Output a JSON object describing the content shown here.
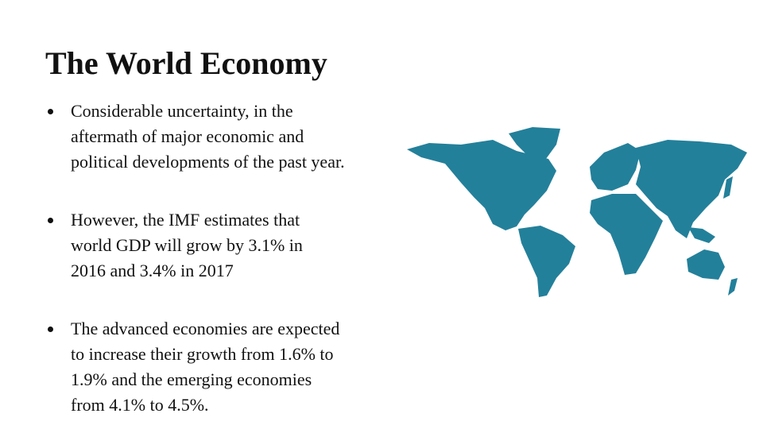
{
  "title": "The World Economy",
  "bullets": [
    [
      "Considerable uncertainty, in the",
      "aftermath of major economic and",
      "political developments of the past year."
    ],
    [
      "However, the IMF estimates that",
      "world GDP will grow by 3.1% in",
      "2016 and 3.4% in 2017"
    ],
    [
      "The advanced economies are expected",
      "to increase their growth from 1.6% to",
      "1.9% and the emerging economies",
      "from 4.1% to 4.5%."
    ]
  ]
}
